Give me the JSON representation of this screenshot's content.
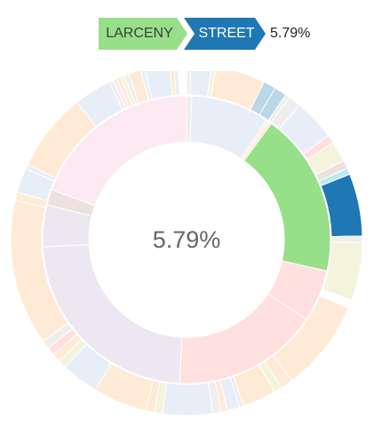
{
  "breadcrumb": {
    "items": [
      {
        "label": "LARCENY",
        "color": "#98df8a",
        "text_color": "#3d3d3d"
      },
      {
        "label": "STREET",
        "color": "#1f77b4",
        "text_color": "#ffffff"
      }
    ],
    "trail_percentage": "5.79%"
  },
  "explanation": {
    "percentage": "5.79%"
  },
  "sunburst": {
    "highlight_path": [
      "LARCENY",
      "STREET"
    ],
    "inner_ring": [
      {
        "value": 1.0,
        "color": "#c7c7c7",
        "highlighted": false
      },
      {
        "value": 15.0,
        "color": "#aec7e8",
        "highlighted": false
      },
      {
        "value": 0.5,
        "color": "#ffbb78",
        "highlighted": false
      },
      {
        "value": 0.6,
        "color": "#ffbb78",
        "highlighted": false
      },
      {
        "value": 31.5,
        "color": "#98df8a",
        "highlighted": true
      },
      {
        "value": 10.0,
        "color": "#ff9896",
        "highlighted": false
      },
      {
        "value": 28.0,
        "color": "#ff9896",
        "highlighted": false
      },
      {
        "value": 40.0,
        "color": "#c5b0d5",
        "highlighted": false
      },
      {
        "value": 8.0,
        "color": "#c5b0d5",
        "highlighted": false
      },
      {
        "value": 3.0,
        "color": "#c49c94",
        "highlighted": false
      },
      {
        "value": 33.0,
        "color": "#f7b6d2",
        "highlighted": false
      }
    ],
    "outer_ring": [
      {
        "value": 1.0,
        "color": "#c7c7c7",
        "highlighted": false
      },
      {
        "value": 5.0,
        "color": "#aec7e8",
        "highlighted": false
      },
      {
        "value": 1.0,
        "color": "#dbdb8d",
        "highlighted": false
      },
      {
        "value": 12.0,
        "color": "#ffbb78",
        "highlighted": false
      },
      {
        "value": 3.0,
        "color": "#1f77b4",
        "highlighted": false
      },
      {
        "value": 3.0,
        "color": "#1f77b4",
        "highlighted": false
      },
      {
        "value": 1.0,
        "color": "#c7c7c7",
        "highlighted": false
      },
      {
        "value": 3.0,
        "color": "#c7c7c7",
        "highlighted": false
      },
      {
        "value": 10.0,
        "color": "#aec7e8",
        "highlighted": false
      },
      {
        "value": 2.0,
        "color": "#ff9896",
        "highlighted": false
      },
      {
        "value": 5.0,
        "color": "#dbdb8d",
        "highlighted": false
      },
      {
        "value": 2.0,
        "color": "#c49c94",
        "highlighted": false
      },
      {
        "value": 1.5,
        "color": "#17becf",
        "highlighted": false
      },
      {
        "value": 15.0,
        "color": "#1f77b4",
        "highlighted": true
      },
      {
        "value": 1.5,
        "color": "#c7c7c7",
        "highlighted": false
      },
      {
        "value": 14.0,
        "color": "#dbdb8d",
        "highlighted": false
      },
      {
        "value": 2.0,
        "color": "#ffffff",
        "highlighted": false
      },
      {
        "value": 22.0,
        "color": "#ffbb78",
        "highlighted": false
      },
      {
        "value": 3.0,
        "color": "#ffbb78",
        "highlighted": false
      },
      {
        "value": 2.0,
        "color": "#dbdb8d",
        "highlighted": false
      },
      {
        "value": 8.0,
        "color": "#ffbb78",
        "highlighted": false
      },
      {
        "value": 1.0,
        "color": "#c7c7c7",
        "highlighted": false
      },
      {
        "value": 3.0,
        "color": "#aec7e8",
        "highlighted": false
      },
      {
        "value": 1.5,
        "color": "#ffbb78",
        "highlighted": false
      },
      {
        "value": 2.0,
        "color": "#c7c7c7",
        "highlighted": false
      },
      {
        "value": 12.0,
        "color": "#aec7e8",
        "highlighted": false
      },
      {
        "value": 2.0,
        "color": "#dbdb8d",
        "highlighted": false
      },
      {
        "value": 2.0,
        "color": "#ffbb78",
        "highlighted": false
      },
      {
        "value": 13.0,
        "color": "#ffbb78",
        "highlighted": false
      },
      {
        "value": 9.0,
        "color": "#aec7e8",
        "highlighted": false
      },
      {
        "value": 2.0,
        "color": "#dbdb8d",
        "highlighted": false
      },
      {
        "value": 2.0,
        "color": "#ffbb78",
        "highlighted": false
      },
      {
        "value": 2.0,
        "color": "#ff9896",
        "highlighted": false
      },
      {
        "value": 2.0,
        "color": "#c7c7c7",
        "highlighted": false
      },
      {
        "value": 35.0,
        "color": "#ffbb78",
        "highlighted": false
      },
      {
        "value": 2.0,
        "color": "#ffbb78",
        "highlighted": false
      },
      {
        "value": 6.0,
        "color": "#aec7e8",
        "highlighted": false
      },
      {
        "value": 1.0,
        "color": "#aec7e8",
        "highlighted": false
      },
      {
        "value": 19.0,
        "color": "#ffbb78",
        "highlighted": false
      },
      {
        "value": 9.0,
        "color": "#aec7e8",
        "highlighted": false
      },
      {
        "value": 1.0,
        "color": "#c7c7c7",
        "highlighted": false
      },
      {
        "value": 1.0,
        "color": "#f7b6d2",
        "highlighted": false
      },
      {
        "value": 1.0,
        "color": "#ffbb78",
        "highlighted": false
      },
      {
        "value": 1.0,
        "color": "#dbdb8d",
        "highlighted": false
      },
      {
        "value": 1.0,
        "color": "#c7c7c7",
        "highlighted": false
      },
      {
        "value": 3.0,
        "color": "#ffbb78",
        "highlighted": false
      },
      {
        "value": 1.0,
        "color": "#c7c7c7",
        "highlighted": false
      },
      {
        "value": 6.0,
        "color": "#aec7e8",
        "highlighted": false
      },
      {
        "value": 1.0,
        "color": "#ffbb78",
        "highlighted": false
      },
      {
        "value": 1.0,
        "color": "#c7c7c7",
        "highlighted": false
      },
      {
        "value": 2.0,
        "color": "#ffffff",
        "highlighted": false
      }
    ]
  }
}
